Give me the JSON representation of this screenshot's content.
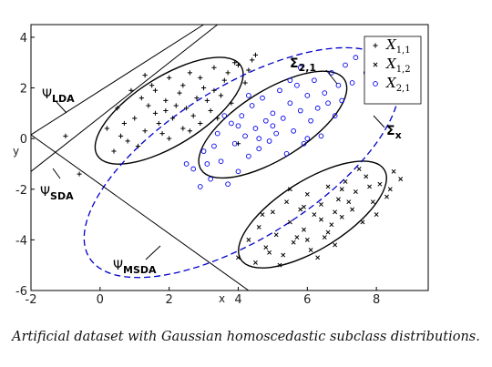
{
  "chart_data": {
    "type": "scatter",
    "xlabel": "x",
    "ylabel": "y",
    "xlim": [
      -2,
      9.5
    ],
    "ylim": [
      -6,
      4.5
    ],
    "xticks": [
      -2,
      0,
      2,
      4,
      6,
      8
    ],
    "yticks": [
      -6,
      -4,
      -2,
      0,
      2,
      4
    ],
    "grid": false,
    "legend_position": "top-right",
    "series": [
      {
        "name": "X",
        "sub": "1,1",
        "marker": "plus",
        "color": "#000000",
        "center": [
          2,
          1
        ],
        "points": [
          [
            0.2,
            0.4
          ],
          [
            0.5,
            1.2
          ],
          [
            0.8,
            -0.1
          ],
          [
            1.0,
            0.8
          ],
          [
            1.2,
            1.6
          ],
          [
            1.3,
            0.3
          ],
          [
            1.5,
            2.1
          ],
          [
            1.6,
            1.0
          ],
          [
            1.8,
            0.2
          ],
          [
            1.9,
            1.5
          ],
          [
            2.0,
            2.4
          ],
          [
            2.1,
            0.8
          ],
          [
            2.3,
            1.8
          ],
          [
            2.4,
            0.4
          ],
          [
            2.5,
            1.2
          ],
          [
            2.6,
            2.6
          ],
          [
            2.8,
            1.6
          ],
          [
            2.9,
            0.6
          ],
          [
            3.0,
            2.0
          ],
          [
            3.2,
            1.1
          ],
          [
            3.3,
            2.8
          ],
          [
            3.5,
            1.7
          ],
          [
            3.6,
            2.3
          ],
          [
            3.8,
            1.4
          ],
          [
            4.0,
            2.9
          ],
          [
            4.2,
            2.2
          ],
          [
            4.4,
            3.1
          ],
          [
            0.7,
            0.6
          ],
          [
            1.1,
            -0.3
          ],
          [
            1.4,
            1.3
          ],
          [
            1.7,
            0.6
          ],
          [
            2.2,
            1.3
          ],
          [
            2.7,
            0.9
          ],
          [
            3.1,
            1.5
          ],
          [
            3.4,
            0.8
          ],
          [
            0.9,
            1.9
          ],
          [
            1.6,
            1.9
          ],
          [
            2.4,
            2.1
          ],
          [
            3.7,
            2.6
          ],
          [
            0.4,
            -0.5
          ],
          [
            2.0,
            0.0
          ],
          [
            2.6,
            0.3
          ],
          [
            4.5,
            3.3
          ],
          [
            1.3,
            2.5
          ],
          [
            0.6,
            0.1
          ],
          [
            3.9,
            3.0
          ],
          [
            4.3,
            2.7
          ],
          [
            2.9,
            2.4
          ],
          [
            1.9,
            1.1
          ],
          [
            3.3,
            1.9
          ],
          [
            -1.0,
            0.1
          ],
          [
            -0.6,
            -1.4
          ],
          [
            4.0,
            -0.2
          ]
        ]
      },
      {
        "name": "X",
        "sub": "1,2",
        "marker": "x",
        "color": "#000000",
        "center": [
          6,
          -3
        ],
        "points": [
          [
            4.0,
            -4.7
          ],
          [
            4.3,
            -4.0
          ],
          [
            4.6,
            -3.5
          ],
          [
            4.8,
            -4.3
          ],
          [
            5.0,
            -2.9
          ],
          [
            5.1,
            -3.8
          ],
          [
            5.3,
            -4.6
          ],
          [
            5.4,
            -2.5
          ],
          [
            5.5,
            -3.3
          ],
          [
            5.6,
            -4.1
          ],
          [
            5.8,
            -2.8
          ],
          [
            5.9,
            -3.6
          ],
          [
            6.0,
            -2.2
          ],
          [
            6.1,
            -4.4
          ],
          [
            6.2,
            -3.0
          ],
          [
            6.4,
            -2.6
          ],
          [
            6.5,
            -3.9
          ],
          [
            6.6,
            -1.9
          ],
          [
            6.7,
            -3.4
          ],
          [
            6.9,
            -2.4
          ],
          [
            7.0,
            -3.1
          ],
          [
            7.1,
            -1.7
          ],
          [
            7.3,
            -2.8
          ],
          [
            7.4,
            -2.1
          ],
          [
            7.6,
            -3.3
          ],
          [
            7.7,
            -1.5
          ],
          [
            7.9,
            -2.5
          ],
          [
            8.1,
            -1.8
          ],
          [
            8.3,
            -2.3
          ],
          [
            8.5,
            -1.3
          ],
          [
            4.5,
            -4.9
          ],
          [
            5.2,
            -5.0
          ],
          [
            4.7,
            -3.0
          ],
          [
            5.7,
            -3.9
          ],
          [
            6.3,
            -4.7
          ],
          [
            6.8,
            -2.9
          ],
          [
            7.2,
            -2.5
          ],
          [
            7.8,
            -1.9
          ],
          [
            8.0,
            -3.0
          ],
          [
            8.7,
            -1.6
          ],
          [
            5.5,
            -2.0
          ],
          [
            6.6,
            -3.7
          ],
          [
            7.5,
            -1.2
          ],
          [
            6.0,
            -4.0
          ],
          [
            4.9,
            -4.5
          ],
          [
            6.4,
            -3.2
          ],
          [
            7.0,
            -2.0
          ],
          [
            8.4,
            -2.0
          ],
          [
            5.9,
            -2.7
          ],
          [
            6.8,
            -4.2
          ]
        ]
      },
      {
        "name": "X",
        "sub": "2,1",
        "marker": "circle",
        "color": "#0000ee",
        "center": [
          4.5,
          0
        ],
        "points": [
          [
            2.7,
            -1.2
          ],
          [
            3.0,
            -0.5
          ],
          [
            3.2,
            -1.6
          ],
          [
            3.4,
            0.2
          ],
          [
            3.5,
            -0.9
          ],
          [
            3.7,
            -1.8
          ],
          [
            3.8,
            0.6
          ],
          [
            3.9,
            -0.2
          ],
          [
            4.0,
            -1.3
          ],
          [
            4.1,
            0.9
          ],
          [
            4.2,
            0.1
          ],
          [
            4.3,
            -0.7
          ],
          [
            4.4,
            1.3
          ],
          [
            4.5,
            0.4
          ],
          [
            4.6,
            -0.4
          ],
          [
            4.7,
            1.6
          ],
          [
            4.8,
            0.7
          ],
          [
            4.9,
            -0.1
          ],
          [
            5.0,
            1.0
          ],
          [
            5.1,
            0.2
          ],
          [
            5.2,
            1.9
          ],
          [
            5.3,
            0.8
          ],
          [
            5.4,
            -0.6
          ],
          [
            5.5,
            1.4
          ],
          [
            5.6,
            0.3
          ],
          [
            5.7,
            2.1
          ],
          [
            5.8,
            1.1
          ],
          [
            5.9,
            -0.2
          ],
          [
            6.0,
            1.7
          ],
          [
            6.1,
            0.7
          ],
          [
            6.2,
            2.3
          ],
          [
            6.3,
            1.2
          ],
          [
            6.4,
            0.1
          ],
          [
            6.5,
            1.8
          ],
          [
            6.7,
            2.6
          ],
          [
            6.8,
            0.9
          ],
          [
            7.0,
            1.5
          ],
          [
            7.1,
            2.9
          ],
          [
            7.3,
            2.2
          ],
          [
            2.9,
            -1.9
          ],
          [
            3.3,
            -0.3
          ],
          [
            3.6,
            0.9
          ],
          [
            4.0,
            0.5
          ],
          [
            4.6,
            0.0
          ],
          [
            5.0,
            0.5
          ],
          [
            5.5,
            2.3
          ],
          [
            6.0,
            0.0
          ],
          [
            6.6,
            1.4
          ],
          [
            7.4,
            3.2
          ],
          [
            7.7,
            2.6
          ],
          [
            2.5,
            -1.0
          ],
          [
            3.1,
            -1.0
          ],
          [
            4.3,
            1.7
          ],
          [
            5.8,
            2.8
          ],
          [
            6.9,
            2.1
          ]
        ]
      }
    ],
    "ellipses": [
      {
        "class": "X_1,1",
        "center": [
          2.0,
          1.1
        ],
        "rx": 2.45,
        "ry": 1.35,
        "angle_deg": 32,
        "style": "solid",
        "color": "#000000"
      },
      {
        "class": "X_2,1",
        "center": [
          5.0,
          0.55
        ],
        "rx": 2.45,
        "ry": 1.35,
        "angle_deg": 32,
        "style": "solid",
        "color": "#000000"
      },
      {
        "class": "X_1,2",
        "center": [
          6.15,
          -3.0
        ],
        "rx": 2.45,
        "ry": 1.35,
        "angle_deg": 32,
        "style": "solid",
        "color": "#000000"
      },
      {
        "class": "pooled",
        "center": [
          4.1,
          -0.95
        ],
        "rx": 5.2,
        "ry": 3.0,
        "angle_deg": 32,
        "style": "dashed",
        "color": "#0000cc"
      }
    ],
    "lines": [
      {
        "name": "LDA",
        "from": [
          -2,
          0.15
        ],
        "to": [
          3.0,
          4.5
        ]
      },
      {
        "name": "SDA",
        "from": [
          -2,
          -1.3
        ],
        "to": [
          3.4,
          4.5
        ]
      },
      {
        "name": "MSDA",
        "from": [
          -2,
          0.15
        ],
        "to": [
          4.3,
          -6.0
        ]
      }
    ],
    "legend_entries": [
      {
        "name": "X",
        "sub": "1,1"
      },
      {
        "name": "X",
        "sub": "1,2"
      },
      {
        "name": "X",
        "sub": "2,1"
      }
    ]
  },
  "annotations": {
    "psi": "Ψ",
    "sigma": "Σ",
    "lda_sub": "LDA",
    "sda_sub": "SDA",
    "msda_sub": "MSDA",
    "sigma21_sub": "2,1",
    "sigmax_sub": "x"
  },
  "caption": "Artificial dataset with Gaussian homoscedastic subclass distributions."
}
